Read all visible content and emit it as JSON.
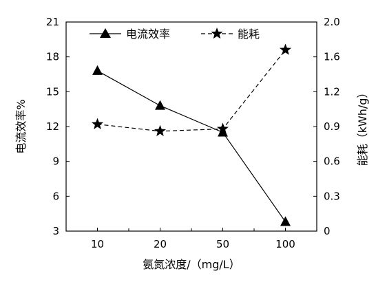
{
  "chart_data": {
    "type": "line",
    "categories": [
      "10",
      "20",
      "50",
      "100"
    ],
    "xlabel": "氨氮浓度/（mg/L）",
    "ylabel_left": "电流效率%",
    "ylabel_right": "能耗（kWh/g）",
    "ylim_left": [
      3,
      21
    ],
    "ylim_right": [
      0,
      2.0
    ],
    "yticks_left": [
      "3",
      "6",
      "9",
      "12",
      "15",
      "18",
      "21"
    ],
    "yticks_right": [
      "0",
      "0.3",
      "0.6",
      "0.9",
      "1.2",
      "1.6",
      "2.0"
    ],
    "legend_position": "top",
    "grid": false,
    "series": [
      {
        "name": "电流效率",
        "axis": "left",
        "marker": "triangle",
        "line_style": "solid",
        "color": "#000000",
        "values": [
          16.8,
          13.8,
          11.5,
          3.8
        ]
      },
      {
        "name": "能耗",
        "axis": "right",
        "marker": "star",
        "line_style": "dashed",
        "color": "#000000",
        "values": [
          0.92,
          0.86,
          0.88,
          1.68
        ]
      }
    ]
  }
}
